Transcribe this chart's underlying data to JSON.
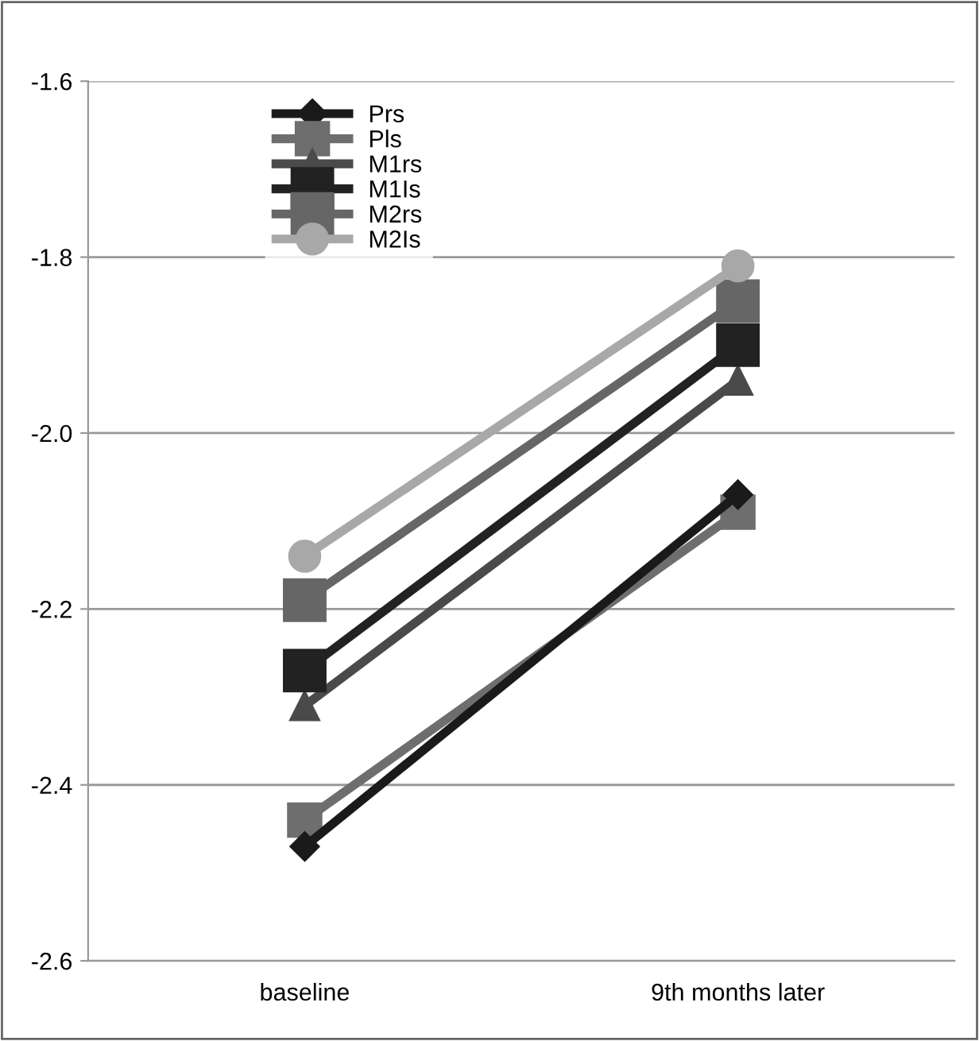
{
  "chart_data": {
    "type": "line",
    "categories": [
      "baseline",
      "9th months later"
    ],
    "series": [
      {
        "name": "Prs",
        "color": "#1a1a1a",
        "marker": "diamond",
        "values": [
          -2.47,
          -2.07
        ]
      },
      {
        "name": "Pls",
        "color": "#6e6e6e",
        "marker": "square",
        "values": [
          -2.44,
          -2.09
        ]
      },
      {
        "name": "M1rs",
        "color": "#4a4a4a",
        "marker": "triangle",
        "values": [
          -2.31,
          -1.94
        ]
      },
      {
        "name": "M1Is",
        "color": "#222222",
        "marker": "square",
        "values": [
          -2.27,
          -1.9
        ]
      },
      {
        "name": "M2rs",
        "color": "#666666",
        "marker": "square",
        "values": [
          -2.19,
          -1.85
        ]
      },
      {
        "name": "M2Is",
        "color": "#a8a8a8",
        "marker": "circle",
        "values": [
          -2.14,
          -1.81
        ]
      }
    ],
    "ylim": [
      -2.6,
      -1.6
    ],
    "yticks": [
      {
        "value": -2.6,
        "label": "-2.6"
      },
      {
        "value": -2.4,
        "label": "-2.4"
      },
      {
        "value": -2.2,
        "label": "-2.2"
      },
      {
        "value": -2.0,
        "label": "-2.0"
      },
      {
        "value": -1.8,
        "label": "-1.8"
      },
      {
        "value": -1.6,
        "label": "-1.6"
      }
    ],
    "grid": "y",
    "legend": "top left",
    "line_style": "solid"
  }
}
